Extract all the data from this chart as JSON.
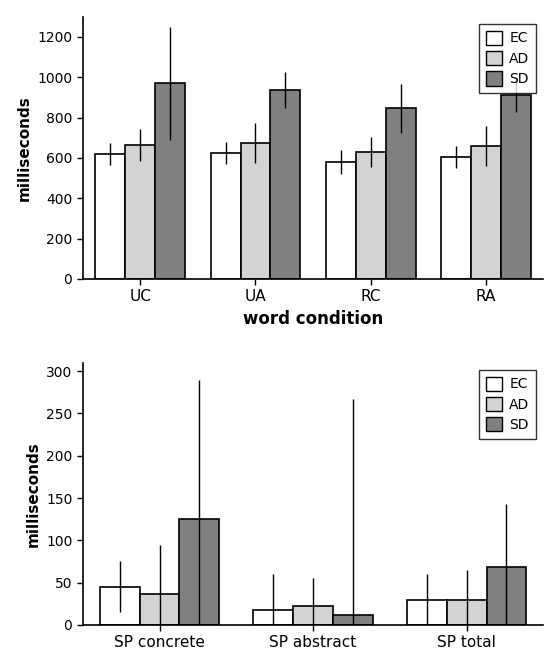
{
  "top_chart": {
    "categories": [
      "UC",
      "UA",
      "RC",
      "RA"
    ],
    "xlabel": "word condition",
    "ylabel": "milliseconds",
    "ylim": [
      0,
      1300
    ],
    "yticks": [
      0,
      200,
      400,
      600,
      800,
      1000,
      1200
    ],
    "bar_values": {
      "EC": [
        620,
        625,
        580,
        605
      ],
      "AD": [
        665,
        675,
        630,
        660
      ],
      "SD": [
        970,
        935,
        845,
        910
      ]
    },
    "bar_errors": {
      "EC": [
        55,
        55,
        60,
        55
      ],
      "AD": [
        80,
        100,
        75,
        100
      ],
      "SD": [
        280,
        90,
        120,
        85
      ]
    },
    "bar_colors": {
      "EC": "#ffffff",
      "AD": "#d3d3d3",
      "SD": "#808080"
    },
    "legend_labels": [
      "EC",
      "AD",
      "SD"
    ]
  },
  "bottom_chart": {
    "categories": [
      "SP concrete",
      "SP abstract",
      "SP total"
    ],
    "xlabel": "",
    "ylabel": "milliseconds",
    "ylim": [
      0,
      310
    ],
    "yticks": [
      0,
      50,
      100,
      150,
      200,
      250,
      300
    ],
    "bar_values": {
      "EC": [
        45,
        18,
        30
      ],
      "AD": [
        37,
        22,
        30
      ],
      "SD": [
        125,
        12,
        68
      ]
    },
    "bar_errors": {
      "EC": [
        30,
        42,
        30
      ],
      "AD": [
        57,
        33,
        35
      ],
      "SD": [
        165,
        255,
        75
      ]
    },
    "bar_colors": {
      "EC": "#ffffff",
      "AD": "#d3d3d3",
      "SD": "#808080"
    },
    "legend_labels": [
      "EC",
      "AD",
      "SD"
    ]
  }
}
